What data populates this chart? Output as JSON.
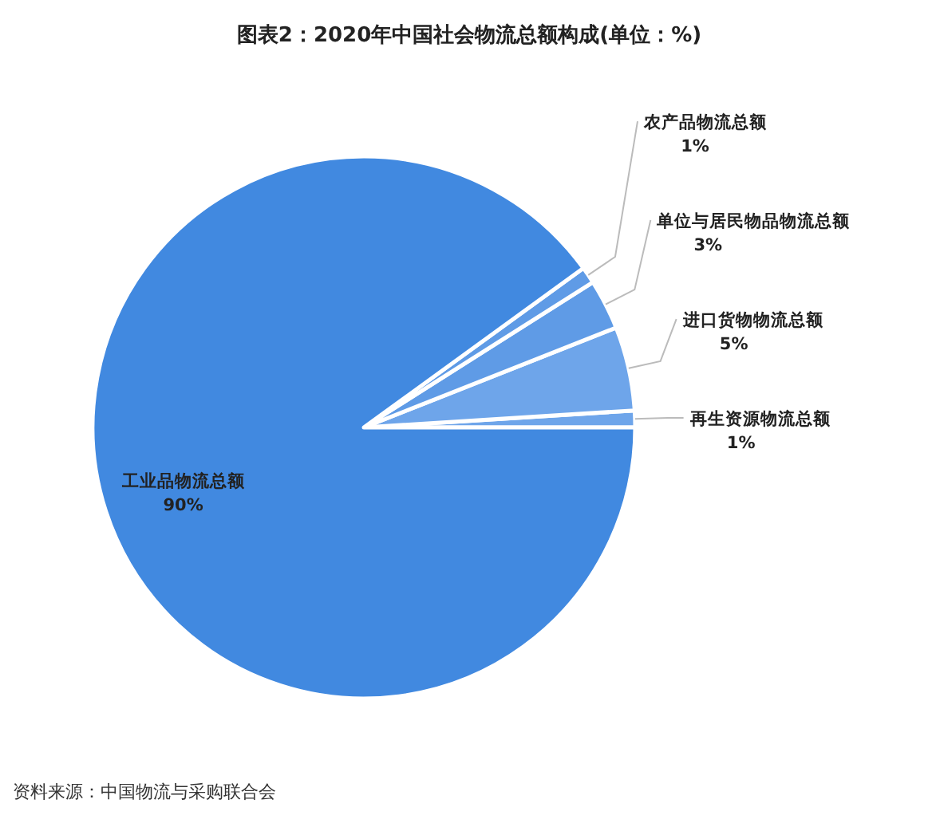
{
  "chart_data": {
    "type": "pie",
    "title": "图表2：2020年中国社会物流总额构成(单位：%)",
    "categories": [
      "再生资源物流总额",
      "进口货物物流总额",
      "单位与居民物品物流总额",
      "农产品物流总额",
      "工业品物流总额"
    ],
    "values": [
      1,
      5,
      3,
      1,
      90
    ],
    "value_labels": [
      "1%",
      "5%",
      "3%",
      "1%",
      "90%"
    ],
    "colors": [
      "#6ea5ea",
      "#6ea5ea",
      "#5f9be6",
      "#5f9be6",
      "#4189e0"
    ],
    "annotations": [
      "资料来源：中国物流与采购联合会"
    ]
  }
}
